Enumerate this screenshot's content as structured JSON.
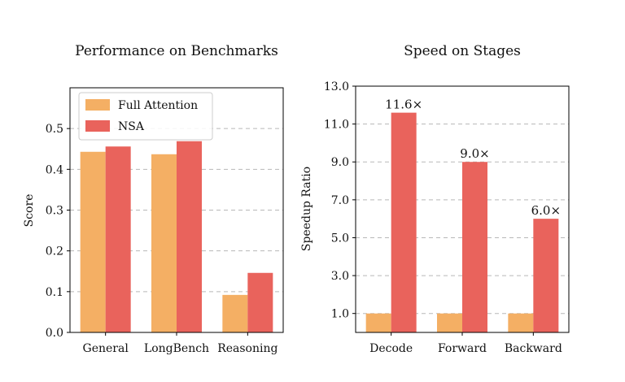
{
  "chart_data": [
    {
      "type": "bar",
      "title": "Performance on Benchmarks",
      "xlabel": "",
      "ylabel": "Score",
      "categories": [
        "General",
        "LongBench",
        "Reasoning"
      ],
      "ylim": [
        0,
        0.6
      ],
      "yticks": [
        "0.0",
        "0.1",
        "0.2",
        "0.3",
        "0.4",
        "0.5"
      ],
      "grid": true,
      "legend": "top-left",
      "series": [
        {
          "name": "Full Attention",
          "color": "#F4AF64",
          "values": [
            0.443,
            0.437,
            0.092
          ]
        },
        {
          "name": "NSA",
          "color": "#E9635C",
          "values": [
            0.456,
            0.469,
            0.146
          ]
        }
      ]
    },
    {
      "type": "bar",
      "title": "Speed on Stages",
      "xlabel": "",
      "ylabel": "Speedup Ratio",
      "categories": [
        "Decode",
        "Forward",
        "Backward"
      ],
      "ylim": [
        0,
        13.0
      ],
      "yticks": [
        "1.0",
        "3.0",
        "5.0",
        "7.0",
        "9.0",
        "11.0",
        "13.0"
      ],
      "grid": true,
      "series": [
        {
          "name": "Full Attention",
          "color": "#F4AF64",
          "values": [
            1.0,
            1.0,
            1.0
          ]
        },
        {
          "name": "NSA",
          "color": "#E9635C",
          "values": [
            11.6,
            9.0,
            6.0
          ],
          "labels": [
            "11.6×",
            "9.0×",
            "6.0×"
          ]
        }
      ]
    }
  ]
}
